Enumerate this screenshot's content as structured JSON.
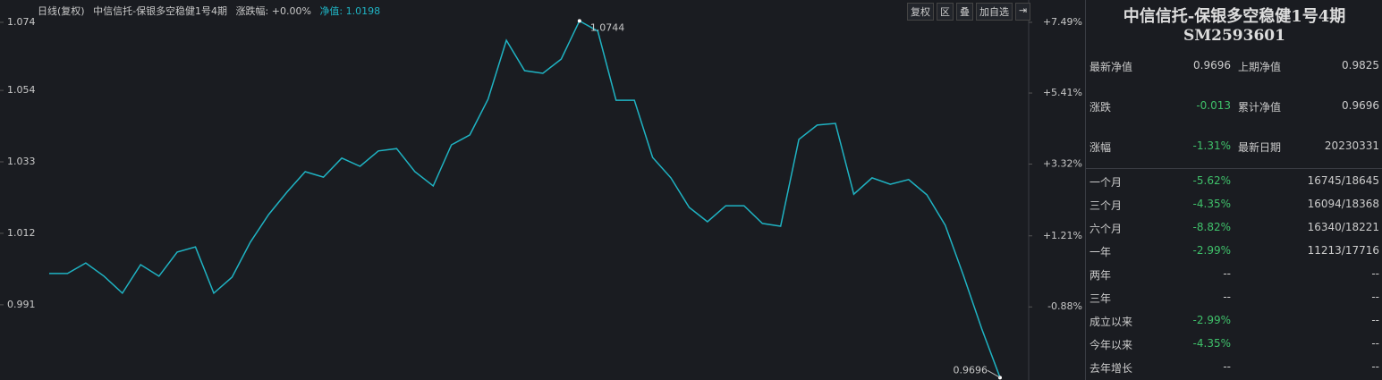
{
  "header": {
    "mode": "日线(复权)",
    "name": "中信信托-保银多空稳健1号4期",
    "change": "涨跌幅: +0.00%",
    "nav": "净值: 1.0198",
    "buttons": [
      "复权",
      "区",
      "叠",
      "加自选",
      "⇥"
    ]
  },
  "chart_data": {
    "type": "line",
    "color": "#1fb3c3",
    "values": [
      1.0002,
      1.0002,
      1.0033,
      0.9994,
      0.9944,
      1.0028,
      0.9994,
      1.0065,
      1.008,
      0.9944,
      0.9991,
      1.0094,
      1.0175,
      1.0241,
      1.0301,
      1.0285,
      1.0341,
      1.0317,
      1.0362,
      1.0369,
      1.0301,
      1.0259,
      1.038,
      1.0409,
      1.0514,
      1.0687,
      1.0598,
      1.059,
      1.0632,
      1.0744,
      1.0714,
      1.0511,
      1.0511,
      1.0343,
      1.0283,
      1.0196,
      1.0154,
      1.0201,
      1.0201,
      1.0149,
      1.0141,
      1.0396,
      1.0438,
      1.0443,
      1.0235,
      1.0283,
      1.0264,
      1.0278,
      1.0233,
      1.0144,
      0.9996,
      0.9839,
      0.9696
    ],
    "ylim": [
      0.9689,
      1.0753
    ],
    "yticks": [
      1.074,
      1.054,
      1.033,
      1.012,
      0.991
    ],
    "y2lim": [
      -3.03,
      7.62
    ],
    "y2ticks": [
      {
        "value": 7.49,
        "label": "+7.49%"
      },
      {
        "value": 5.41,
        "label": "+5.41%"
      },
      {
        "value": 3.32,
        "label": "+3.32%"
      },
      {
        "value": 1.21,
        "label": "+1.21%"
      },
      {
        "value": -0.88,
        "label": "-0.88%"
      }
    ],
    "grid": false
  },
  "panel": {
    "title": "中信信托-保银多空稳健1号4期",
    "code": "SM2593601",
    "stats": [
      [
        "最新净值",
        "0.9696",
        "上期净值",
        "0.9825"
      ],
      [
        "涨跌",
        "-0.013",
        "累计净值",
        "0.9696"
      ],
      [
        "涨幅",
        "-1.31%",
        "最新日期",
        "20230331"
      ]
    ],
    "performance": [
      [
        "一个月",
        "-5.62%",
        "16745/18645"
      ],
      [
        "三个月",
        "-4.35%",
        "16094/18368"
      ],
      [
        "六个月",
        "-8.82%",
        "16340/18221"
      ],
      [
        "一年",
        "-2.99%",
        "11213/17716"
      ],
      [
        "两年",
        "--",
        "--"
      ],
      [
        "三年",
        "--",
        "--"
      ],
      [
        "成立以来",
        "-2.99%",
        "--"
      ],
      [
        "今年以来",
        "-4.35%",
        "--"
      ],
      [
        "去年增长",
        "--",
        "--"
      ]
    ]
  }
}
